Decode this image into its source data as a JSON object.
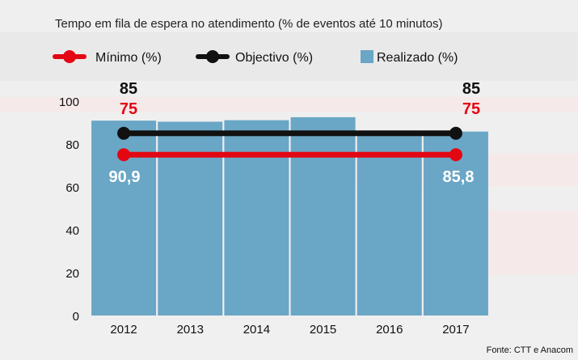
{
  "chart_data": {
    "type": "bar",
    "title": "Tempo em fila de espera no atendimento (% de eventos até 10 minutos)",
    "categories": [
      "2012",
      "2013",
      "2014",
      "2015",
      "2016",
      "2017"
    ],
    "series": [
      {
        "name": "Realizado (%)",
        "type": "bar",
        "values": [
          90.9,
          90.4,
          91.1,
          92.5,
          86.0,
          85.8
        ],
        "color": "#6aa6c5"
      },
      {
        "name": "Mínimo (%)",
        "type": "line",
        "values": [
          75,
          75,
          75,
          75,
          75,
          75
        ],
        "color": "#e30613"
      },
      {
        "name": "Objectivo (%)",
        "type": "line",
        "values": [
          85,
          85,
          85,
          85,
          85,
          85
        ],
        "color": "#111111"
      }
    ],
    "ylim": [
      0,
      100
    ],
    "yticks": [
      0,
      20,
      40,
      60,
      80,
      100
    ],
    "grid": false,
    "legend_position": "top",
    "annotations": {
      "objectivo_start": "85",
      "minimo_start": "75",
      "objectivo_end": "85",
      "minimo_end": "75",
      "realizado_first": "90,9",
      "realizado_last": "85,8"
    },
    "source": "Fonte: CTT e Anacom"
  }
}
